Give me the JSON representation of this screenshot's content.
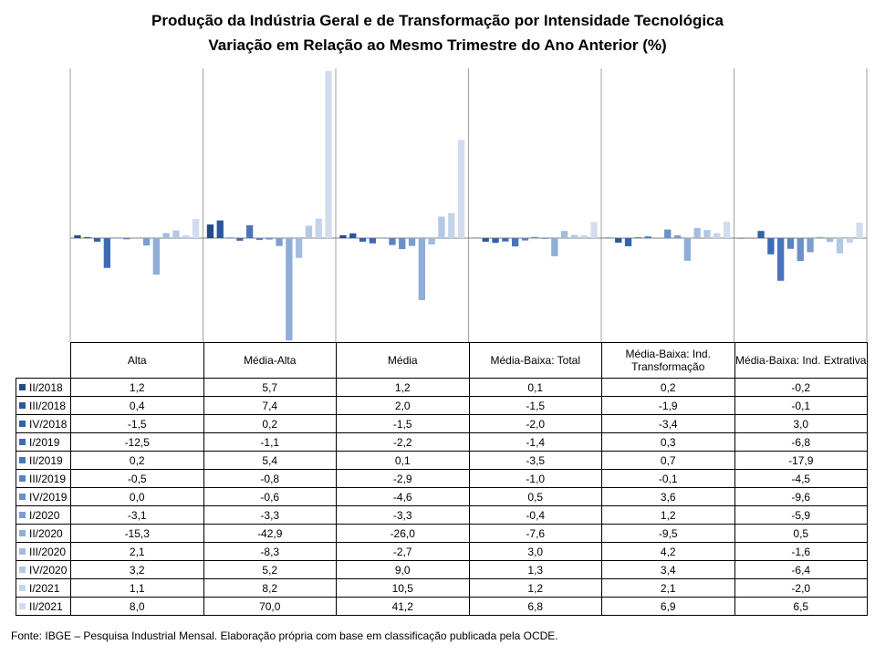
{
  "title": "Produção da Indústria Geral e de Transformação por Intensidade Tecnológica",
  "subtitle": "Variação em Relação ao Mesmo Trimestre do Ano Anterior (%)",
  "footer": "Fonte: IBGE – Pesquisa Industrial Mensal. Elaboração própria com base em classificação publicada pela OCDE.",
  "chart_data": {
    "type": "bar",
    "title": "Produção da Indústria Geral e de Transformação por Intensidade Tecnológica",
    "subtitle": "Variação em Relação ao Mesmo Trimestre do Ano Anterior (%)",
    "categories": [
      "Alta",
      "Média-Alta",
      "Média",
      "Média-Baixa: Total",
      "Média-Baixa: Ind. Transformação",
      "Média-Baixa: Ind. Extrativa"
    ],
    "ylim": [
      -43,
      70
    ],
    "legend": "data-table",
    "grid": false,
    "series": [
      {
        "name": "II/2018",
        "color": "#254b87",
        "values": [
          1.2,
          5.7,
          1.2,
          0.1,
          0.2,
          -0.2
        ],
        "labels": [
          "1,2",
          "5,7",
          "1,2",
          "0,1",
          "0,2",
          "-0,2"
        ]
      },
      {
        "name": "III/2018",
        "color": "#2b579b",
        "values": [
          0.4,
          7.4,
          2.0,
          -1.5,
          -1.9,
          -0.1
        ],
        "labels": [
          "0,4",
          "7,4",
          "2,0",
          "-1,5",
          "-1,9",
          "-0,1"
        ]
      },
      {
        "name": "IV/2018",
        "color": "#3461a8",
        "values": [
          -1.5,
          0.2,
          -1.5,
          -2.0,
          -3.4,
          3.0
        ],
        "labels": [
          "-1,5",
          "0,2",
          "-1,5",
          "-2,0",
          "-3,4",
          "3,0"
        ]
      },
      {
        "name": "I/2019",
        "color": "#3d6bb3",
        "values": [
          -12.5,
          -1.1,
          -2.2,
          -1.4,
          0.3,
          -6.8
        ],
        "labels": [
          "-12,5",
          "-1,1",
          "-2,2",
          "-1,4",
          "0,3",
          "-6,8"
        ]
      },
      {
        "name": "II/2019",
        "color": "#4975ba",
        "values": [
          0.2,
          5.4,
          0.1,
          -3.5,
          0.7,
          -17.9
        ],
        "labels": [
          "0,2",
          "5,4",
          "0,1",
          "-3,5",
          "0,7",
          "-17,9"
        ]
      },
      {
        "name": "III/2019",
        "color": "#5882c1",
        "values": [
          -0.5,
          -0.8,
          -2.9,
          -1.0,
          -0.1,
          -4.5
        ],
        "labels": [
          "-0,5",
          "-0,8",
          "-2,9",
          "-1,0",
          "-0,1",
          "-4,5"
        ]
      },
      {
        "name": "IV/2019",
        "color": "#6a90c9",
        "values": [
          0.0,
          -0.6,
          -4.6,
          0.5,
          3.6,
          -9.6
        ],
        "labels": [
          "0,0",
          "-0,6",
          "-4,6",
          "0,5",
          "3,6",
          "-9,6"
        ]
      },
      {
        "name": "I/2020",
        "color": "#7b9ed0",
        "values": [
          -3.1,
          -3.3,
          -3.3,
          -0.4,
          1.2,
          -5.9
        ],
        "labels": [
          "-3,1",
          "-3,3",
          "-3,3",
          "-0,4",
          "1,2",
          "-5,9"
        ]
      },
      {
        "name": "II/2020",
        "color": "#8eadd8",
        "values": [
          -15.3,
          -42.9,
          -26.0,
          -7.6,
          -9.5,
          0.5
        ],
        "labels": [
          "-15,3",
          "-42,9",
          "-26,0",
          "-7,6",
          "-9,5",
          "0,5"
        ]
      },
      {
        "name": "III/2020",
        "color": "#a2bcdf",
        "values": [
          2.1,
          -8.3,
          -2.7,
          3.0,
          4.2,
          -1.6
        ],
        "labels": [
          "2,1",
          "-8,3",
          "-2,7",
          "3,0",
          "4,2",
          "-1,6"
        ]
      },
      {
        "name": "IV/2020",
        "color": "#b3c8e5",
        "values": [
          3.2,
          5.2,
          9.0,
          1.3,
          3.4,
          -6.4
        ],
        "labels": [
          "3,2",
          "5,2",
          "9,0",
          "1,3",
          "3,4",
          "-6,4"
        ]
      },
      {
        "name": "I/2021",
        "color": "#c4d4eb",
        "values": [
          1.1,
          8.2,
          10.5,
          1.2,
          2.1,
          -2.0
        ],
        "labels": [
          "1,1",
          "8,2",
          "10,5",
          "1,2",
          "2,1",
          "-2,0"
        ]
      },
      {
        "name": "II/2021",
        "color": "#d1ddef",
        "values": [
          8.0,
          70.0,
          41.2,
          6.8,
          6.9,
          6.5
        ],
        "labels": [
          "8,0",
          "70,0",
          "41,2",
          "6,8",
          "6,9",
          "6,5"
        ]
      }
    ]
  }
}
